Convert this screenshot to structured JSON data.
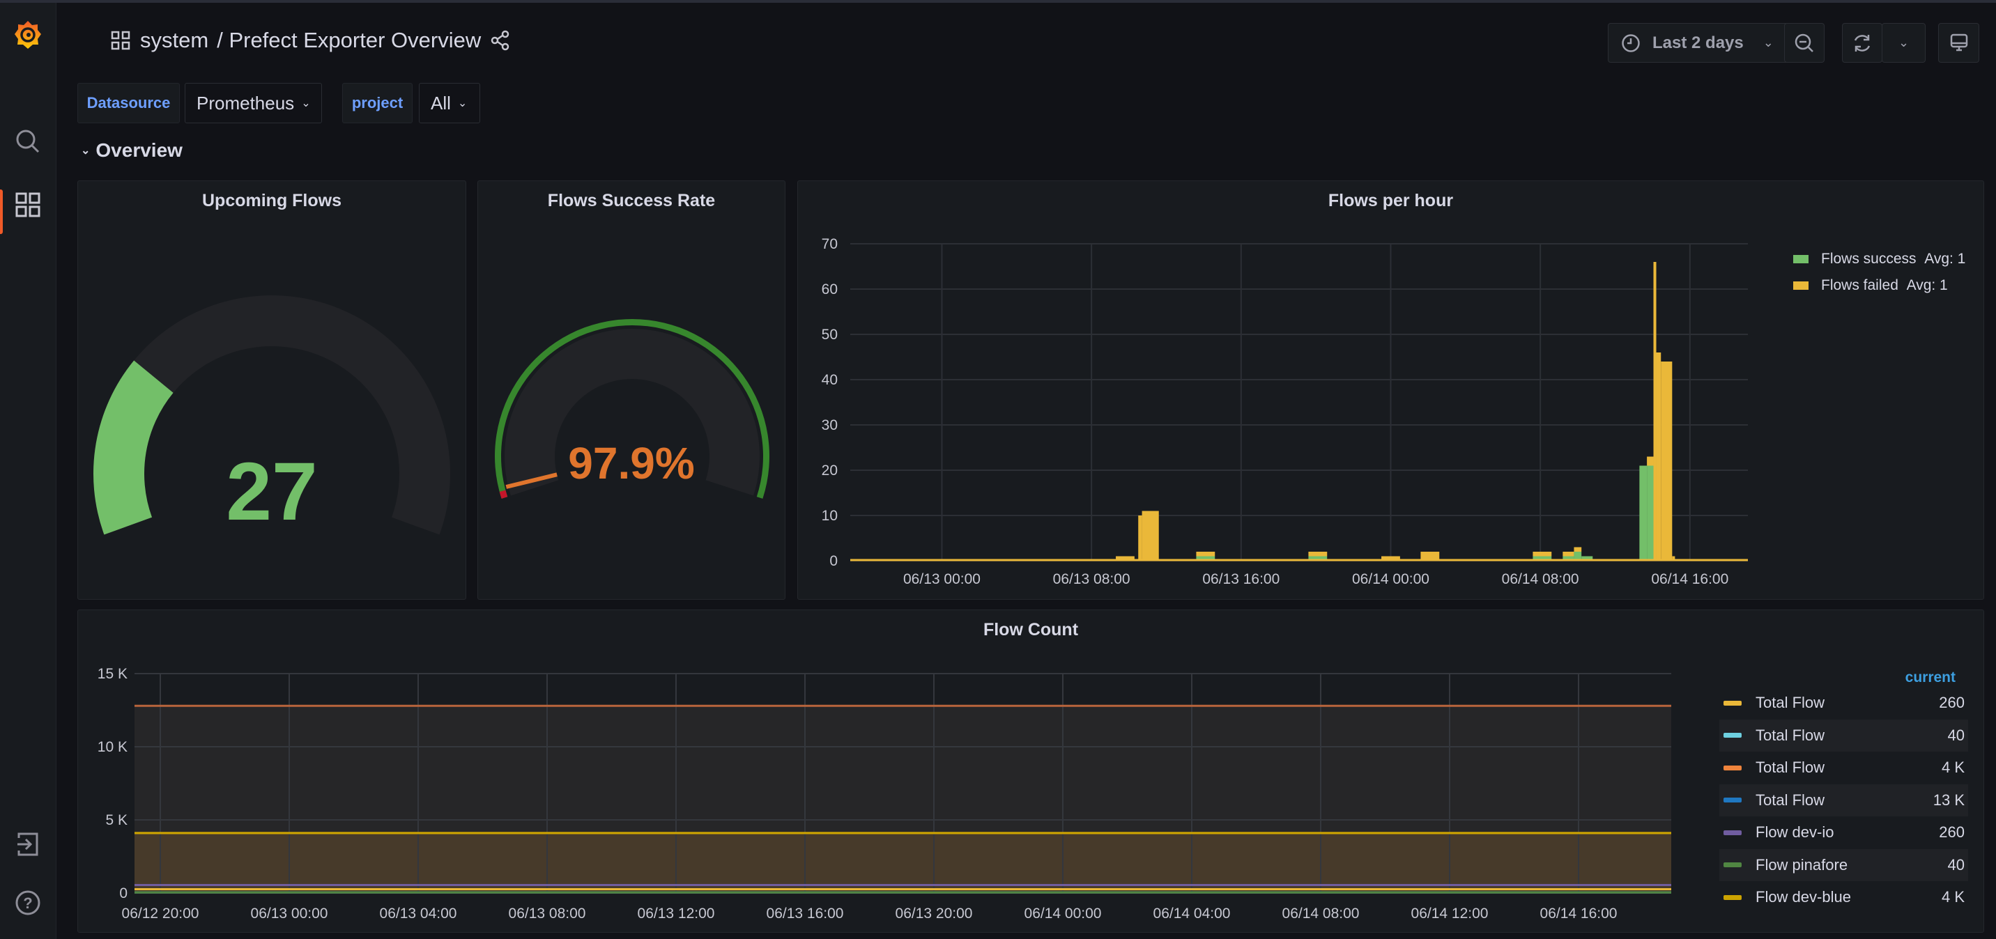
{
  "header": {
    "folder": "system",
    "separator": "/",
    "title": "Prefect Exporter Overview"
  },
  "toolbar": {
    "time_range": "Last 2 days"
  },
  "variables": [
    {
      "label": "Datasource",
      "value": "Prometheus"
    },
    {
      "label": "project",
      "value": "All"
    }
  ],
  "row": {
    "title": "Overview"
  },
  "panels": {
    "upcoming": {
      "title": "Upcoming Flows",
      "value": "27",
      "fraction": 0.27,
      "color": "#73bf69"
    },
    "success": {
      "title": "Flows Success Rate",
      "value": "97.9%",
      "fraction": 0.02,
      "color": "#e0752d",
      "threshold_color": "#37872d",
      "threshold_red": "#c4162a"
    },
    "per_hour": {
      "title": "Flows per hour"
    },
    "count": {
      "title": "Flow Count",
      "legend_header": "current"
    }
  },
  "chart_data": [
    {
      "type": "bar",
      "title": "Flows per hour",
      "ylim": [
        0,
        70
      ],
      "yticks": [
        "0",
        "10",
        "20",
        "30",
        "40",
        "50",
        "60",
        "70"
      ],
      "xlim_hours_from_0613": [
        -4.9,
        43.1
      ],
      "xticks": [
        {
          "h": 0,
          "label": "06/13 00:00"
        },
        {
          "h": 8,
          "label": "06/13 08:00"
        },
        {
          "h": 16,
          "label": "06/13 16:00"
        },
        {
          "h": 24,
          "label": "06/14 00:00"
        },
        {
          "h": 32,
          "label": "06/14 08:00"
        },
        {
          "h": 40,
          "label": "06/14 16:00"
        }
      ],
      "series": [
        {
          "name": "Flows success",
          "avg": "Avg: 1",
          "color": "#73bf69"
        },
        {
          "name": "Flows failed",
          "avg": "Avg: 1",
          "color": "#eab839"
        }
      ],
      "bars": [
        [
          9.3,
          10.3,
          0,
          1
        ],
        [
          10.5,
          10.7,
          0,
          10
        ],
        [
          10.7,
          11.6,
          0,
          11
        ],
        [
          13.6,
          14.6,
          1,
          1
        ],
        [
          19.6,
          20.6,
          1,
          1
        ],
        [
          23.5,
          24.5,
          0,
          1
        ],
        [
          25.6,
          26.6,
          0,
          2
        ],
        [
          31.6,
          32.6,
          1,
          1
        ],
        [
          33.2,
          33.8,
          1,
          1
        ],
        [
          33.8,
          34.2,
          2,
          1
        ],
        [
          34.2,
          34.8,
          1,
          0
        ],
        [
          37.3,
          37.7,
          21,
          0
        ],
        [
          37.7,
          38.05,
          21,
          2
        ],
        [
          38.05,
          38.2,
          0,
          66
        ],
        [
          38.2,
          38.45,
          0,
          46
        ],
        [
          38.45,
          39.05,
          0,
          44
        ],
        [
          39.05,
          39.2,
          0,
          1
        ]
      ]
    },
    {
      "type": "area",
      "title": "Flow Count",
      "ylim": [
        0,
        15000
      ],
      "yticks": [
        {
          "v": 0,
          "label": "0"
        },
        {
          "v": 5000,
          "label": "5 K"
        },
        {
          "v": 10000,
          "label": "10 K"
        },
        {
          "v": 15000,
          "label": "15 K"
        }
      ],
      "xticks": [
        "06/12 20:00",
        "06/13 00:00",
        "06/13 04:00",
        "06/13 08:00",
        "06/13 12:00",
        "06/13 16:00",
        "06/13 20:00",
        "06/14 00:00",
        "06/14 04:00",
        "06/14 08:00",
        "06/14 12:00",
        "06/14 16:00"
      ],
      "series": [
        {
          "name": "Total Flow",
          "current": "260",
          "value": 260,
          "color": "#eab839"
        },
        {
          "name": "Total Flow",
          "current": "40",
          "value": 40,
          "color": "#6ed0e0"
        },
        {
          "name": "Total Flow",
          "current": "4 K",
          "value": 4100,
          "color": "#ef843c"
        },
        {
          "name": "Total Flow",
          "current": "13 K",
          "value": 12800,
          "color": "#1f78c1"
        },
        {
          "name": "Flow dev-io",
          "current": "260",
          "value": 260,
          "color": "#705da0"
        },
        {
          "name": "Flow pinafore",
          "current": "40",
          "value": 40,
          "color": "#508642"
        },
        {
          "name": "Flow dev-blue",
          "current": "4 K",
          "value": 4100,
          "color": "#cca300"
        }
      ]
    }
  ]
}
